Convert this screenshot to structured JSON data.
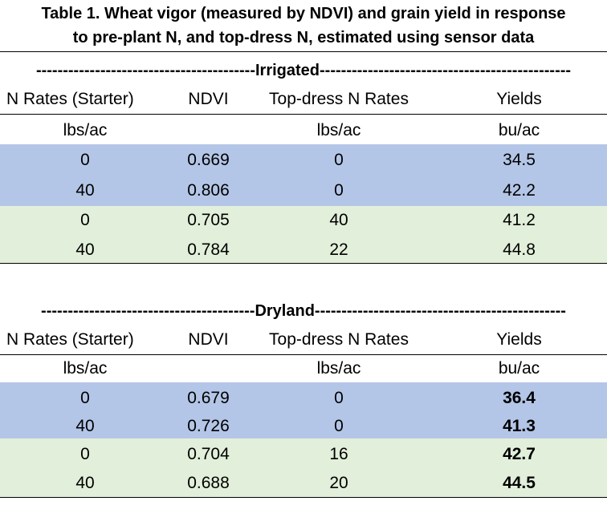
{
  "title": {
    "line1": "Table 1. Wheat vigor (measured by NDVI) and grain yield in response",
    "line2": "to pre-plant N, and top-dress N, estimated using sensor data"
  },
  "colors": {
    "blue_band": "#b4c6e7",
    "green_band": "#e2efda",
    "rule": "#000000"
  },
  "irrigated": {
    "divider": "-----------------------------------------Irrigated-----------------------------------------------",
    "headers": [
      "N Rates (Starter)",
      "NDVI",
      "Top-dress N Rates",
      "Yields"
    ],
    "units": [
      "lbs/ac",
      "",
      "lbs/ac",
      "bu/ac"
    ],
    "rows": [
      [
        "0",
        "0.669",
        "0",
        "34.5"
      ],
      [
        "40",
        "0.806",
        "0",
        "42.2"
      ],
      [
        "0",
        "0.705",
        "40",
        "41.2"
      ],
      [
        "40",
        "0.784",
        "22",
        "44.8"
      ]
    ]
  },
  "dryland": {
    "divider": "----------------------------------------Dryland-----------------------------------------------",
    "headers": [
      "N Rates (Starter)",
      "NDVI",
      "Top-dress N Rates",
      "Yields"
    ],
    "units": [
      "lbs/ac",
      "",
      "lbs/ac",
      "bu/ac"
    ],
    "rows": [
      [
        "0",
        "0.679",
        "0",
        "36.4"
      ],
      [
        "40",
        "0.726",
        "0",
        "41.3"
      ],
      [
        "0",
        "0.704",
        "16",
        "42.7"
      ],
      [
        "40",
        "0.688",
        "20",
        "44.5"
      ]
    ]
  }
}
